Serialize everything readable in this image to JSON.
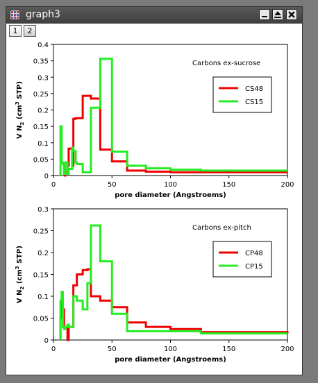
{
  "window": {
    "title": "graph3",
    "buttons": {
      "minimize": "minimize",
      "maximize": "maximize",
      "close": "close"
    }
  },
  "tabs": [
    {
      "label": "1",
      "active": true
    },
    {
      "label": "2",
      "active": false
    }
  ],
  "chart_data": [
    {
      "type": "line",
      "title": "Carbons ex-sucrose",
      "xlabel": "pore diameter (Angstroems)",
      "ylabel": "V N2 (cm3 STP)",
      "xlim": [
        0,
        200
      ],
      "ylim": [
        0,
        0.4
      ],
      "xticks": [
        0,
        50,
        100,
        150,
        200
      ],
      "yticks": [
        0,
        0.05,
        0.1,
        0.15,
        0.2,
        0.25,
        0.3,
        0.35,
        0.4
      ],
      "ytick_labels": [
        "0",
        "0.05",
        "0.1",
        "0.15",
        "0.2",
        "0.25",
        "0.3",
        "0.35",
        "0.4"
      ],
      "step": true,
      "legend_position": "top-right",
      "series": [
        {
          "name": "CS48",
          "color": "#ee0000",
          "x": [
            9,
            10,
            12,
            13,
            16,
            17,
            19,
            25,
            32,
            40,
            50,
            63,
            79,
            100,
            126,
            200
          ],
          "y": [
            0.0,
            0.01,
            0.03,
            0.082,
            0.03,
            0.173,
            0.175,
            0.243,
            0.235,
            0.079,
            0.043,
            0.015,
            0.012,
            0.01,
            0.01,
            0.01
          ]
        },
        {
          "name": "CS15",
          "color": "#22ee22",
          "x": [
            6,
            7,
            8,
            9,
            10,
            12,
            13,
            16,
            17,
            19,
            20,
            25,
            32,
            40,
            50,
            63,
            79,
            100,
            126,
            200
          ],
          "y": [
            0.15,
            0.04,
            0.035,
            0.005,
            0.04,
            0.005,
            0.02,
            0.085,
            0.075,
            0.04,
            0.035,
            0.01,
            0.207,
            0.356,
            0.073,
            0.03,
            0.022,
            0.018,
            0.015,
            0.015
          ]
        }
      ]
    },
    {
      "type": "line",
      "title": "Carbons ex-pitch",
      "xlabel": "pore diameter (Angstroems)",
      "ylabel": "V N2 (cm3 STP)",
      "xlim": [
        0,
        200
      ],
      "ylim": [
        0,
        0.3
      ],
      "xticks": [
        0,
        50,
        100,
        150,
        200
      ],
      "yticks": [
        0,
        0.05,
        0.1,
        0.15,
        0.2,
        0.25,
        0.3
      ],
      "ytick_labels": [
        "0",
        "0.05",
        "0.1",
        "0.15",
        "0.2",
        "0.25",
        "0.3"
      ],
      "step": true,
      "legend_position": "top-right",
      "series": [
        {
          "name": "CP48",
          "color": "#ee0000",
          "x": [
            6,
            7,
            8,
            9,
            12,
            13,
            16,
            17,
            20,
            25,
            29,
            32,
            40,
            50,
            63,
            79,
            100,
            126,
            200
          ],
          "y": [
            0.05,
            0.09,
            0.07,
            0.03,
            0.0,
            0.03,
            0.03,
            0.125,
            0.15,
            0.16,
            0.162,
            0.1,
            0.09,
            0.075,
            0.04,
            0.03,
            0.025,
            0.018,
            0.015
          ]
        },
        {
          "name": "CP15",
          "color": "#22ee22",
          "x": [
            6,
            7,
            8,
            9,
            10,
            12,
            13,
            16,
            17,
            20,
            25,
            29,
            32,
            40,
            50,
            63,
            79,
            100,
            126,
            200
          ],
          "y": [
            0.09,
            0.11,
            0.03,
            0.025,
            0.03,
            0.035,
            0.03,
            0.03,
            0.1,
            0.09,
            0.07,
            0.13,
            0.262,
            0.18,
            0.06,
            0.02,
            0.02,
            0.02,
            0.015,
            0.015
          ]
        }
      ]
    }
  ]
}
